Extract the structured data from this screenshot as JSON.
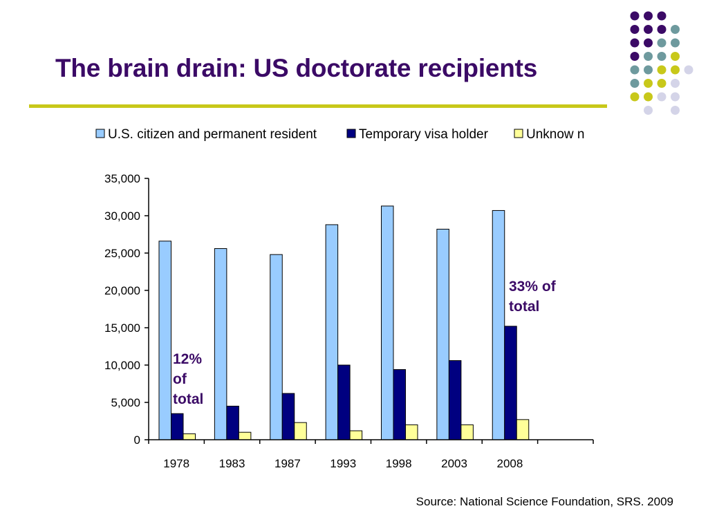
{
  "slide": {
    "title": "The brain drain: US doctorate recipients",
    "source": "Source: National Science Foundation, SRS. 2009"
  },
  "decoration": {
    "dot_colors": {
      "purple": "#3b0a66",
      "teal": "#6e9a9e",
      "olive": "#c8c81a",
      "lavender": "#d4d4e8"
    },
    "rule_color": "#c8c81a"
  },
  "annotations": {
    "note_1978": [
      "12%",
      "of",
      "total"
    ],
    "note_2008": [
      "33% of",
      "total"
    ]
  },
  "chart_data": {
    "type": "bar",
    "categories": [
      "1978",
      "1983",
      "1987",
      "1993",
      "1998",
      "2003",
      "2008",
      ""
    ],
    "series": [
      {
        "name": "U.S. citizen and permanent resident",
        "color": "#99ccff",
        "values": [
          26600,
          25600,
          24800,
          28800,
          31300,
          28200,
          30700,
          null
        ]
      },
      {
        "name": "Temporary visa holder",
        "color": "#000080",
        "values": [
          3500,
          4500,
          6200,
          10000,
          9400,
          10600,
          15200,
          null
        ]
      },
      {
        "name": "Unknow n",
        "color": "#ffff99",
        "values": [
          800,
          1000,
          2300,
          1200,
          2000,
          2000,
          2700,
          null
        ]
      }
    ],
    "y_ticks": [
      "0",
      "5,000",
      "10,000",
      "15,000",
      "20,000",
      "25,000",
      "30,000",
      "35,000"
    ],
    "ylim": [
      0,
      35000
    ],
    "title": "",
    "xlabel": "",
    "ylabel": "",
    "grid": false,
    "legend_position": "top"
  }
}
